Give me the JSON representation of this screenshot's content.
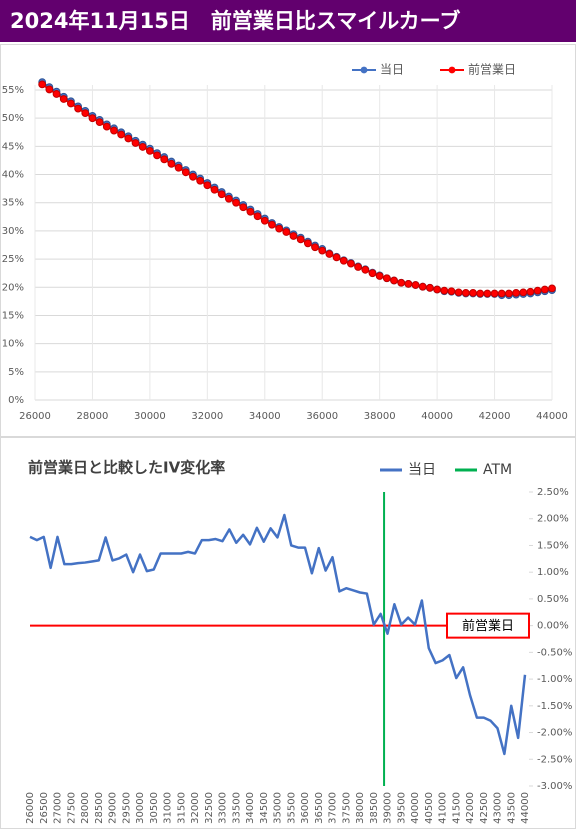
{
  "title": "2024年11月15日　前営業日比スマイルカーブ",
  "chart_data": [
    {
      "type": "line",
      "markers": true,
      "grid": true,
      "legend": "top",
      "x": [
        26250,
        26500,
        26750,
        27000,
        27250,
        27500,
        27750,
        28000,
        28250,
        28500,
        28750,
        29000,
        29250,
        29500,
        29750,
        30000,
        30250,
        30500,
        30750,
        31000,
        31250,
        31500,
        31750,
        32000,
        32250,
        32500,
        32750,
        33000,
        33250,
        33500,
        33750,
        34000,
        34250,
        34500,
        34750,
        35000,
        35250,
        35500,
        35750,
        36000,
        36250,
        36500,
        36750,
        37000,
        37250,
        37500,
        37750,
        38000,
        38250,
        38500,
        38750,
        39000,
        39250,
        39500,
        39750,
        40000,
        40250,
        40500,
        40750,
        41000,
        41250,
        41500,
        41750,
        42000,
        42250,
        42500,
        42750,
        43000,
        43250,
        43500,
        43750,
        44000
      ],
      "series": [
        {
          "name": "当日",
          "color": "#4472c4",
          "values": [
            56.4,
            55.5,
            54.7,
            53.8,
            53.0,
            52.1,
            51.3,
            50.4,
            49.7,
            48.9,
            48.2,
            47.5,
            46.8,
            46.0,
            45.3,
            44.6,
            43.8,
            43.1,
            42.3,
            41.6,
            40.8,
            40.0,
            39.3,
            38.5,
            37.7,
            36.9,
            36.1,
            35.4,
            34.6,
            33.8,
            33.0,
            32.2,
            31.4,
            30.7,
            30.1,
            29.4,
            28.8,
            28.1,
            27.4,
            26.8,
            26.0,
            25.4,
            24.8,
            24.3,
            23.7,
            23.2,
            22.6,
            22.1,
            21.6,
            21.2,
            20.8,
            20.6,
            20.4,
            20.1,
            19.9,
            19.6,
            19.3,
            19.2,
            19.0,
            18.9,
            18.9,
            18.8,
            18.8,
            18.8,
            18.6,
            18.6,
            18.7,
            18.8,
            18.9,
            19.1,
            19.3,
            19.5
          ]
        },
        {
          "name": "前営業日",
          "color": "#ff0000",
          "values": [
            56.0,
            55.1,
            54.3,
            53.4,
            52.6,
            51.7,
            50.9,
            50.0,
            49.3,
            48.5,
            47.8,
            47.1,
            46.4,
            45.6,
            44.9,
            44.2,
            43.4,
            42.7,
            41.9,
            41.2,
            40.4,
            39.6,
            38.9,
            38.1,
            37.3,
            36.5,
            35.7,
            35.0,
            34.2,
            33.4,
            32.6,
            31.8,
            31.1,
            30.4,
            29.8,
            29.1,
            28.5,
            27.8,
            27.1,
            26.5,
            25.9,
            25.3,
            24.7,
            24.2,
            23.6,
            23.1,
            22.5,
            22.0,
            21.6,
            21.2,
            20.8,
            20.6,
            20.4,
            20.1,
            19.9,
            19.6,
            19.4,
            19.3,
            19.1,
            19.0,
            19.0,
            18.9,
            18.9,
            18.9,
            18.9,
            18.9,
            19.0,
            19.1,
            19.2,
            19.4,
            19.6,
            19.8
          ]
        }
      ],
      "xlim": [
        26000,
        44000
      ],
      "xticks": [
        26000,
        28000,
        30000,
        32000,
        34000,
        36000,
        38000,
        40000,
        42000,
        44000
      ],
      "ylim": [
        0,
        55
      ],
      "yticks": [
        {
          "value": 0,
          "label": "0%"
        },
        {
          "value": 5,
          "label": "5%"
        },
        {
          "value": 10,
          "label": "10%"
        },
        {
          "value": 15,
          "label": "15%"
        },
        {
          "value": 20,
          "label": "20%"
        },
        {
          "value": 25,
          "label": "25%"
        },
        {
          "value": 30,
          "label": "30%"
        },
        {
          "value": 35,
          "label": "35%"
        },
        {
          "value": 40,
          "label": "40%"
        },
        {
          "value": 45,
          "label": "45%"
        },
        {
          "value": 50,
          "label": "50%"
        },
        {
          "value": 55,
          "label": "55%"
        }
      ]
    },
    {
      "type": "line",
      "title": "前営業日と比較したIV変化率",
      "grid": false,
      "legend": "top",
      "categories": [
        "26000",
        null,
        "26500",
        null,
        "27000",
        null,
        "27500",
        null,
        "28000",
        null,
        "28500",
        null,
        "29000",
        null,
        "29500",
        null,
        "30000",
        null,
        "30500",
        null,
        "31000",
        null,
        "31500",
        null,
        "32000",
        null,
        "32500",
        null,
        "33000",
        null,
        "33500",
        null,
        "34000",
        null,
        "34500",
        null,
        "35000",
        null,
        "35500",
        null,
        "36000",
        null,
        "36500",
        null,
        "37000",
        null,
        "37500",
        null,
        "38000",
        null,
        "38500",
        null,
        "39000",
        null,
        "39500",
        null,
        "40000",
        null,
        "40500",
        null,
        "41000",
        null,
        "41500",
        null,
        "42000",
        null,
        "42500",
        null,
        "43000",
        null,
        "43500",
        null,
        "44000"
      ],
      "series": [
        {
          "name": "当日",
          "color": "#4472c4",
          "values": [
            1.66,
            1.6,
            1.66,
            1.08,
            1.66,
            1.15,
            1.15,
            1.17,
            1.18,
            1.2,
            1.22,
            1.65,
            1.22,
            1.26,
            1.33,
            1.0,
            1.33,
            1.02,
            1.05,
            1.35,
            1.35,
            1.35,
            1.35,
            1.38,
            1.35,
            1.6,
            1.6,
            1.62,
            1.58,
            1.8,
            1.55,
            1.7,
            1.52,
            1.83,
            1.57,
            1.82,
            1.65,
            2.07,
            1.5,
            1.46,
            1.46,
            0.98,
            1.45,
            1.03,
            1.28,
            0.64,
            0.7,
            0.66,
            0.62,
            0.6,
            0.02,
            0.22,
            -0.15,
            0.4,
            0.02,
            0.15,
            0.02,
            0.47,
            -0.42,
            -0.7,
            -0.65,
            -0.55,
            -0.98,
            -0.78,
            -1.3,
            -1.72,
            -1.72,
            -1.78,
            -1.92,
            -2.4,
            -1.5,
            -2.1,
            -0.92
          ]
        }
      ],
      "atm": {
        "value": 38875,
        "label": "ATM",
        "color": "#00b050"
      },
      "reference_line": {
        "value": 0,
        "label": "前営業日",
        "color": "#ff0000"
      },
      "ylim": [
        -3,
        2.5
      ],
      "yticks": [
        {
          "value": -3,
          "label": "-3.00%"
        },
        {
          "value": -2.5,
          "label": "-2.50%"
        },
        {
          "value": -2,
          "label": "-2.00%"
        },
        {
          "value": -1.5,
          "label": "-1.50%"
        },
        {
          "value": -1,
          "label": "-1.00%"
        },
        {
          "value": -0.5,
          "label": "-0.50%"
        },
        {
          "value": 0,
          "label": "0.00%"
        },
        {
          "value": 0.5,
          "label": "0.50%"
        },
        {
          "value": 1,
          "label": "1.00%"
        },
        {
          "value": 1.5,
          "label": "1.50%"
        },
        {
          "value": 2,
          "label": "2.00%"
        },
        {
          "value": 2.5,
          "label": "2.50%"
        }
      ]
    }
  ]
}
